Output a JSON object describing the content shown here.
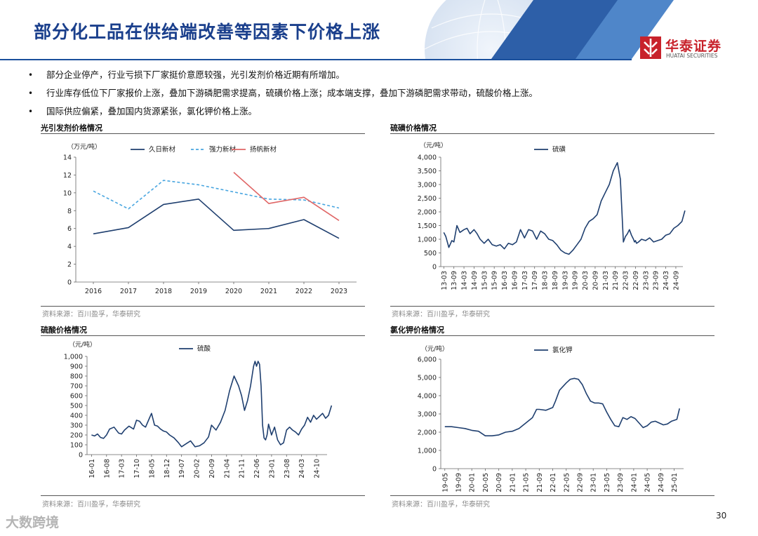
{
  "header": {
    "title": "部分化工品在供给端改善等因素下价格上涨",
    "logo_cn": "华泰证券",
    "logo_en": "HUATAI SECURITIES",
    "brand_color": "#1a3f8c",
    "logo_color": "#c8222b"
  },
  "bullets": [
    {
      "icon": "bullet-dot",
      "text": "部分企业停产，行业亏损下厂家挺价意愿较强，光引发剂价格近期有所增加。"
    },
    {
      "icon": "bullet-dot",
      "text": "行业库存低位下厂家报价上涨，叠加下游磷肥需求提高，硫磺价格上涨；成本端支撑，叠加下游磷肥需求带动，硫酸价格上涨。"
    },
    {
      "icon": "bullet-dot",
      "text": "国际供应偏紧，叠加国内货源紧张，氯化钾价格上涨。"
    }
  ],
  "footer": {
    "page_number": "30",
    "watermark": "大数跨境"
  },
  "chart_data": [
    {
      "type": "line",
      "title": "光引发剂价格情况",
      "unit": "（万元/吨）",
      "source": "资料来源：百川盈孚，华泰研究",
      "categories": [
        "2016",
        "2017",
        "2018",
        "2019",
        "2020",
        "2021",
        "2022",
        "2023"
      ],
      "ylim": [
        0,
        14
      ],
      "yticks": [
        0,
        2,
        4,
        6,
        8,
        10,
        12,
        14
      ],
      "yticklabels": [
        "0",
        "2",
        "4",
        "6",
        "8",
        "10",
        "12",
        "14"
      ],
      "series": [
        {
          "name": "久日新材",
          "color": "#1f3f6f",
          "dash": "solid",
          "values": [
            5.4,
            6.1,
            8.7,
            9.3,
            5.8,
            6.0,
            7.0,
            4.9
          ]
        },
        {
          "name": "强力新材",
          "color": "#49a6e0",
          "dash": "dashed",
          "values": [
            10.2,
            8.2,
            11.4,
            10.9,
            10.1,
            9.3,
            9.2,
            8.3
          ]
        },
        {
          "name": "扬帆新材",
          "color": "#e06666",
          "dash": "solid",
          "values": [
            null,
            null,
            null,
            null,
            12.3,
            8.8,
            9.5,
            6.9
          ]
        }
      ]
    },
    {
      "type": "line",
      "title": "硫磺价格情况",
      "unit": "（元/吨）",
      "source": "资料来源：百川盈孚，华泰研究",
      "categories": [
        "13-03",
        "13-09",
        "14-03",
        "14-09",
        "15-03",
        "15-09",
        "16-03",
        "16-09",
        "17-03",
        "17-09",
        "18-03",
        "18-09",
        "19-03",
        "19-09",
        "20-03",
        "20-09",
        "21-03",
        "21-09",
        "22-03",
        "22-09",
        "23-03",
        "23-09",
        "24-03",
        "24-09"
      ],
      "ylim": [
        0,
        4000
      ],
      "yticks": [
        0,
        500,
        1000,
        1500,
        2000,
        2500,
        3000,
        3500,
        4000
      ],
      "yticklabels": [
        "0",
        "500",
        "1,000",
        "1,500",
        "2,000",
        "2,500",
        "3,000",
        "3,500",
        "4,000"
      ],
      "series": [
        {
          "name": "硫磺",
          "color": "#1f3f6f",
          "dash": "solid",
          "x": [
            0,
            0.2,
            0.5,
            0.8,
            1.0,
            1.3,
            1.6,
            2.0,
            2.3,
            2.6,
            3.0,
            3.3,
            3.6,
            4.0,
            4.4,
            4.8,
            5.2,
            5.6,
            6.0,
            6.4,
            6.8,
            7.2,
            7.6,
            8.0,
            8.4,
            8.8,
            9.2,
            9.6,
            10.0,
            10.4,
            10.8,
            11.2,
            11.6,
            12.0,
            12.4,
            12.8,
            13.2,
            13.6,
            14.0,
            14.4,
            14.8,
            15.2,
            15.6,
            16.0,
            16.4,
            16.8,
            17.2,
            17.5,
            17.8,
            18.0,
            18.2,
            18.4,
            18.6,
            18.8,
            18.9,
            19.0,
            19.1,
            19.3,
            19.6,
            20.0,
            20.4,
            20.8,
            21.2,
            21.6,
            22.0,
            22.4,
            22.8,
            23.2,
            23.6,
            23.9
          ],
          "values": [
            1250,
            1100,
            700,
            950,
            900,
            1500,
            1250,
            1350,
            1400,
            1200,
            1350,
            1200,
            1000,
            850,
            1000,
            800,
            750,
            800,
            650,
            850,
            800,
            900,
            1350,
            1050,
            1350,
            1300,
            1000,
            1300,
            1200,
            1000,
            950,
            800,
            600,
            500,
            450,
            600,
            800,
            1000,
            1400,
            1650,
            1750,
            1900,
            2400,
            2700,
            3000,
            3500,
            3800,
            3200,
            900,
            1100,
            1200,
            1350,
            1150,
            1000,
            900,
            950,
            850,
            900,
            1000,
            950,
            1050,
            900,
            950,
            1000,
            1150,
            1200,
            1400,
            1500,
            1650,
            2050
          ]
        }
      ]
    },
    {
      "type": "line",
      "title": "硫酸价格情况",
      "unit": "（元/吨）",
      "source": "资料来源：百川盈孚，华泰研究",
      "categories": [
        "16-01",
        "16-08",
        "17-03",
        "17-10",
        "18-05",
        "18-12",
        "19-07",
        "20-02",
        "20-09",
        "21-04",
        "21-11",
        "22-06",
        "23-01",
        "23-08",
        "24-03",
        "24-10"
      ],
      "ylim": [
        0,
        1000
      ],
      "yticks": [
        0,
        100,
        200,
        300,
        400,
        500,
        600,
        700,
        800,
        900,
        1000
      ],
      "yticklabels": [
        "0",
        "100",
        "200",
        "300",
        "400",
        "500",
        "600",
        "700",
        "800",
        "900",
        "1,000"
      ],
      "series": [
        {
          "name": "硫酸",
          "color": "#1f3f6f",
          "dash": "solid",
          "x": [
            0,
            0.2,
            0.4,
            0.6,
            0.8,
            1.0,
            1.2,
            1.5,
            1.8,
            2.0,
            2.2,
            2.5,
            2.8,
            3.0,
            3.2,
            3.4,
            3.6,
            3.8,
            4.0,
            4.2,
            4.4,
            4.6,
            4.8,
            5.0,
            5.2,
            5.5,
            5.8,
            6.0,
            6.3,
            6.6,
            6.9,
            7.2,
            7.5,
            7.8,
            8.0,
            8.3,
            8.6,
            8.9,
            9.2,
            9.5,
            9.8,
            10.0,
            10.2,
            10.4,
            10.6,
            10.8,
            10.9,
            11.0,
            11.1,
            11.2,
            11.3,
            11.4,
            11.5,
            11.6,
            11.7,
            11.8,
            12.0,
            12.2,
            12.4,
            12.6,
            12.8,
            13.0,
            13.2,
            13.4,
            13.6,
            13.8,
            14.0,
            14.2,
            14.4,
            14.6,
            14.8,
            15.0,
            15.2,
            15.4,
            15.6,
            15.8,
            16.0
          ],
          "values": [
            200,
            190,
            210,
            175,
            165,
            200,
            260,
            280,
            220,
            210,
            250,
            290,
            260,
            350,
            340,
            300,
            280,
            350,
            420,
            300,
            290,
            260,
            240,
            230,
            200,
            170,
            120,
            80,
            110,
            140,
            80,
            90,
            120,
            180,
            300,
            250,
            330,
            450,
            650,
            800,
            700,
            600,
            450,
            550,
            700,
            900,
            950,
            900,
            950,
            920,
            700,
            300,
            170,
            150,
            200,
            310,
            200,
            280,
            150,
            100,
            120,
            250,
            280,
            250,
            230,
            200,
            260,
            300,
            380,
            330,
            400,
            360,
            390,
            420,
            370,
            400,
            500
          ]
        }
      ]
    },
    {
      "type": "line",
      "title": "氯化钾价格情况",
      "unit": "（元/吨）",
      "source": "资料来源：百川盈孚，华泰研究",
      "categories": [
        "19-05",
        "19-09",
        "20-01",
        "20-05",
        "20-09",
        "21-01",
        "21-05",
        "21-09",
        "22-01",
        "22-05",
        "22-09",
        "23-01",
        "23-05",
        "23-09",
        "24-01",
        "24-05",
        "24-09",
        "25-01"
      ],
      "ylim": [
        0,
        6000
      ],
      "yticks": [
        0,
        1000,
        2000,
        3000,
        4000,
        5000,
        6000
      ],
      "yticklabels": [
        "0",
        "1,000",
        "2,000",
        "3,000",
        "4,000",
        "5,000",
        "6,000"
      ],
      "series": [
        {
          "name": "氯化钾",
          "color": "#1f3f6f",
          "dash": "solid",
          "x": [
            0,
            0.5,
            1.0,
            1.5,
            2.0,
            2.5,
            3.0,
            3.5,
            4.0,
            4.5,
            5.0,
            5.5,
            6.0,
            6.5,
            6.8,
            7.0,
            7.5,
            8.0,
            8.2,
            8.5,
            9.0,
            9.3,
            9.6,
            9.9,
            10.2,
            10.5,
            10.8,
            11.1,
            11.4,
            11.7,
            12.0,
            12.3,
            12.6,
            12.9,
            13.2,
            13.5,
            13.8,
            14.1,
            14.4,
            14.7,
            15.0,
            15.3,
            15.6,
            15.9,
            16.2,
            16.5,
            16.8,
            17.0,
            17.2,
            17.4
          ],
          "values": [
            2300,
            2300,
            2250,
            2200,
            2100,
            2050,
            1800,
            1800,
            1850,
            2000,
            2050,
            2200,
            2500,
            2800,
            3250,
            3250,
            3200,
            3350,
            3700,
            4300,
            4700,
            4900,
            4950,
            4900,
            4600,
            4100,
            3700,
            3600,
            3600,
            3550,
            3100,
            2700,
            2350,
            2300,
            2800,
            2700,
            2850,
            2750,
            2500,
            2250,
            2350,
            2550,
            2600,
            2500,
            2400,
            2450,
            2600,
            2650,
            2700,
            3300
          ]
        }
      ]
    }
  ]
}
